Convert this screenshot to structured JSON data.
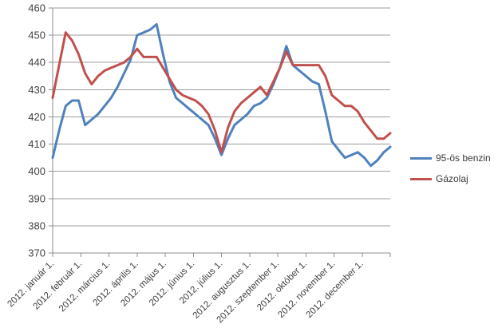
{
  "chart_data": {
    "type": "line",
    "grid": "horizontal",
    "legend_position": "right",
    "x_unit": "week",
    "x_labels": [
      "2012. január 1.",
      "2012. február 1.",
      "2012. március 1.",
      "2012. április 1.",
      "2012. május 1.",
      "2012. június 1.",
      "2012. július 1.",
      "2012. augusztus 1.",
      "2012. szeptember 1.",
      "2012. október 1.",
      "2012. november 1.",
      "2012. december 1."
    ],
    "y_axis": {
      "min": 370,
      "max": 460,
      "step": 10,
      "ticks": [
        370,
        380,
        390,
        400,
        410,
        420,
        430,
        440,
        450,
        460
      ]
    },
    "series": [
      {
        "name": "95-ös benzin",
        "color": "#4F81BD",
        "values": [
          405,
          415,
          424,
          426,
          426,
          417,
          419,
          421,
          424,
          427,
          431,
          436,
          441,
          450,
          451,
          452,
          454,
          443,
          433,
          427,
          425,
          423,
          421,
          419,
          417,
          412,
          406,
          412,
          417,
          419,
          421,
          424,
          425,
          427,
          432,
          438,
          446,
          439,
          437,
          435,
          433,
          432,
          422,
          411,
          408,
          405,
          406,
          407,
          405,
          402,
          404,
          407,
          409
        ]
      },
      {
        "name": "Gázolaj",
        "color": "#C0504D",
        "values": [
          427,
          439,
          451,
          448,
          443,
          436,
          432,
          435,
          437,
          438,
          439,
          440,
          442,
          445,
          442,
          442,
          442,
          438,
          434,
          430,
          428,
          427,
          426,
          424,
          421,
          415,
          407,
          416,
          422,
          425,
          427,
          429,
          431,
          428,
          433,
          438,
          444,
          439,
          439,
          439,
          439,
          439,
          435,
          428,
          426,
          424,
          424,
          422,
          418,
          415,
          412,
          412,
          414
        ]
      }
    ]
  },
  "styles": {
    "background": "#FFFFFF",
    "grid_color": "#9C9C9C",
    "axis_color": "#8C8C8C",
    "text_color": "#404040"
  }
}
